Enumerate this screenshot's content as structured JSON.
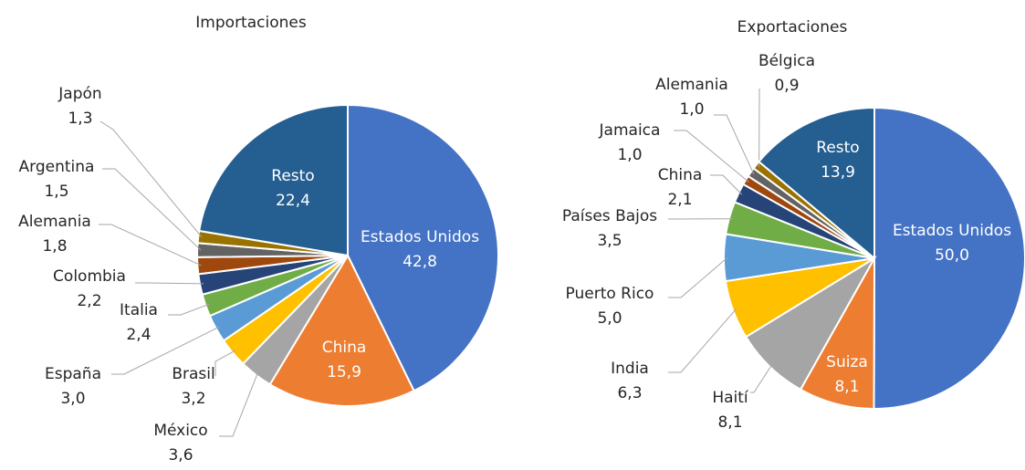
{
  "chart_data": [
    {
      "type": "pie",
      "title": "Importaciones",
      "categories": [
        "Estados Unidos",
        "China",
        "México",
        "Brasil",
        "España",
        "Italia",
        "Colombia",
        "Alemania",
        "Argentina",
        "Japón",
        "Resto"
      ],
      "values": [
        42.8,
        15.9,
        3.6,
        3.2,
        3.0,
        2.4,
        2.2,
        1.8,
        1.5,
        1.3,
        22.4
      ],
      "value_labels": [
        "42,8",
        "15,9",
        "3,6",
        "3,2",
        "3,0",
        "2,4",
        "2,2",
        "1,8",
        "1,5",
        "1,3",
        "22,4"
      ],
      "colors": [
        "#4472c4",
        "#ed7d31",
        "#a5a5a5",
        "#ffc000",
        "#5b9bd5",
        "#70ad47",
        "#264478",
        "#9e480e",
        "#636363",
        "#997300",
        "#255e91"
      ]
    },
    {
      "type": "pie",
      "title": "Exportaciones",
      "categories": [
        "Estados Unidos",
        "Suiza",
        "Haití",
        "India",
        "Puerto Rico",
        "Países Bajos",
        "China",
        "Jamaica",
        "Alemania",
        "Bélgica",
        "Resto"
      ],
      "values": [
        50.0,
        8.1,
        8.1,
        6.3,
        5.0,
        3.5,
        2.1,
        1.0,
        1.0,
        0.9,
        13.9
      ],
      "value_labels": [
        "50,0",
        "8,1",
        "8,1",
        "6,3",
        "5,0",
        "3,5",
        "2,1",
        "1,0",
        "1,0",
        "0,9",
        "13,9"
      ],
      "colors": [
        "#4472c4",
        "#ed7d31",
        "#a5a5a5",
        "#ffc000",
        "#5b9bd5",
        "#70ad47",
        "#264478",
        "#9e480e",
        "#636363",
        "#997300",
        "#255e91"
      ]
    }
  ]
}
